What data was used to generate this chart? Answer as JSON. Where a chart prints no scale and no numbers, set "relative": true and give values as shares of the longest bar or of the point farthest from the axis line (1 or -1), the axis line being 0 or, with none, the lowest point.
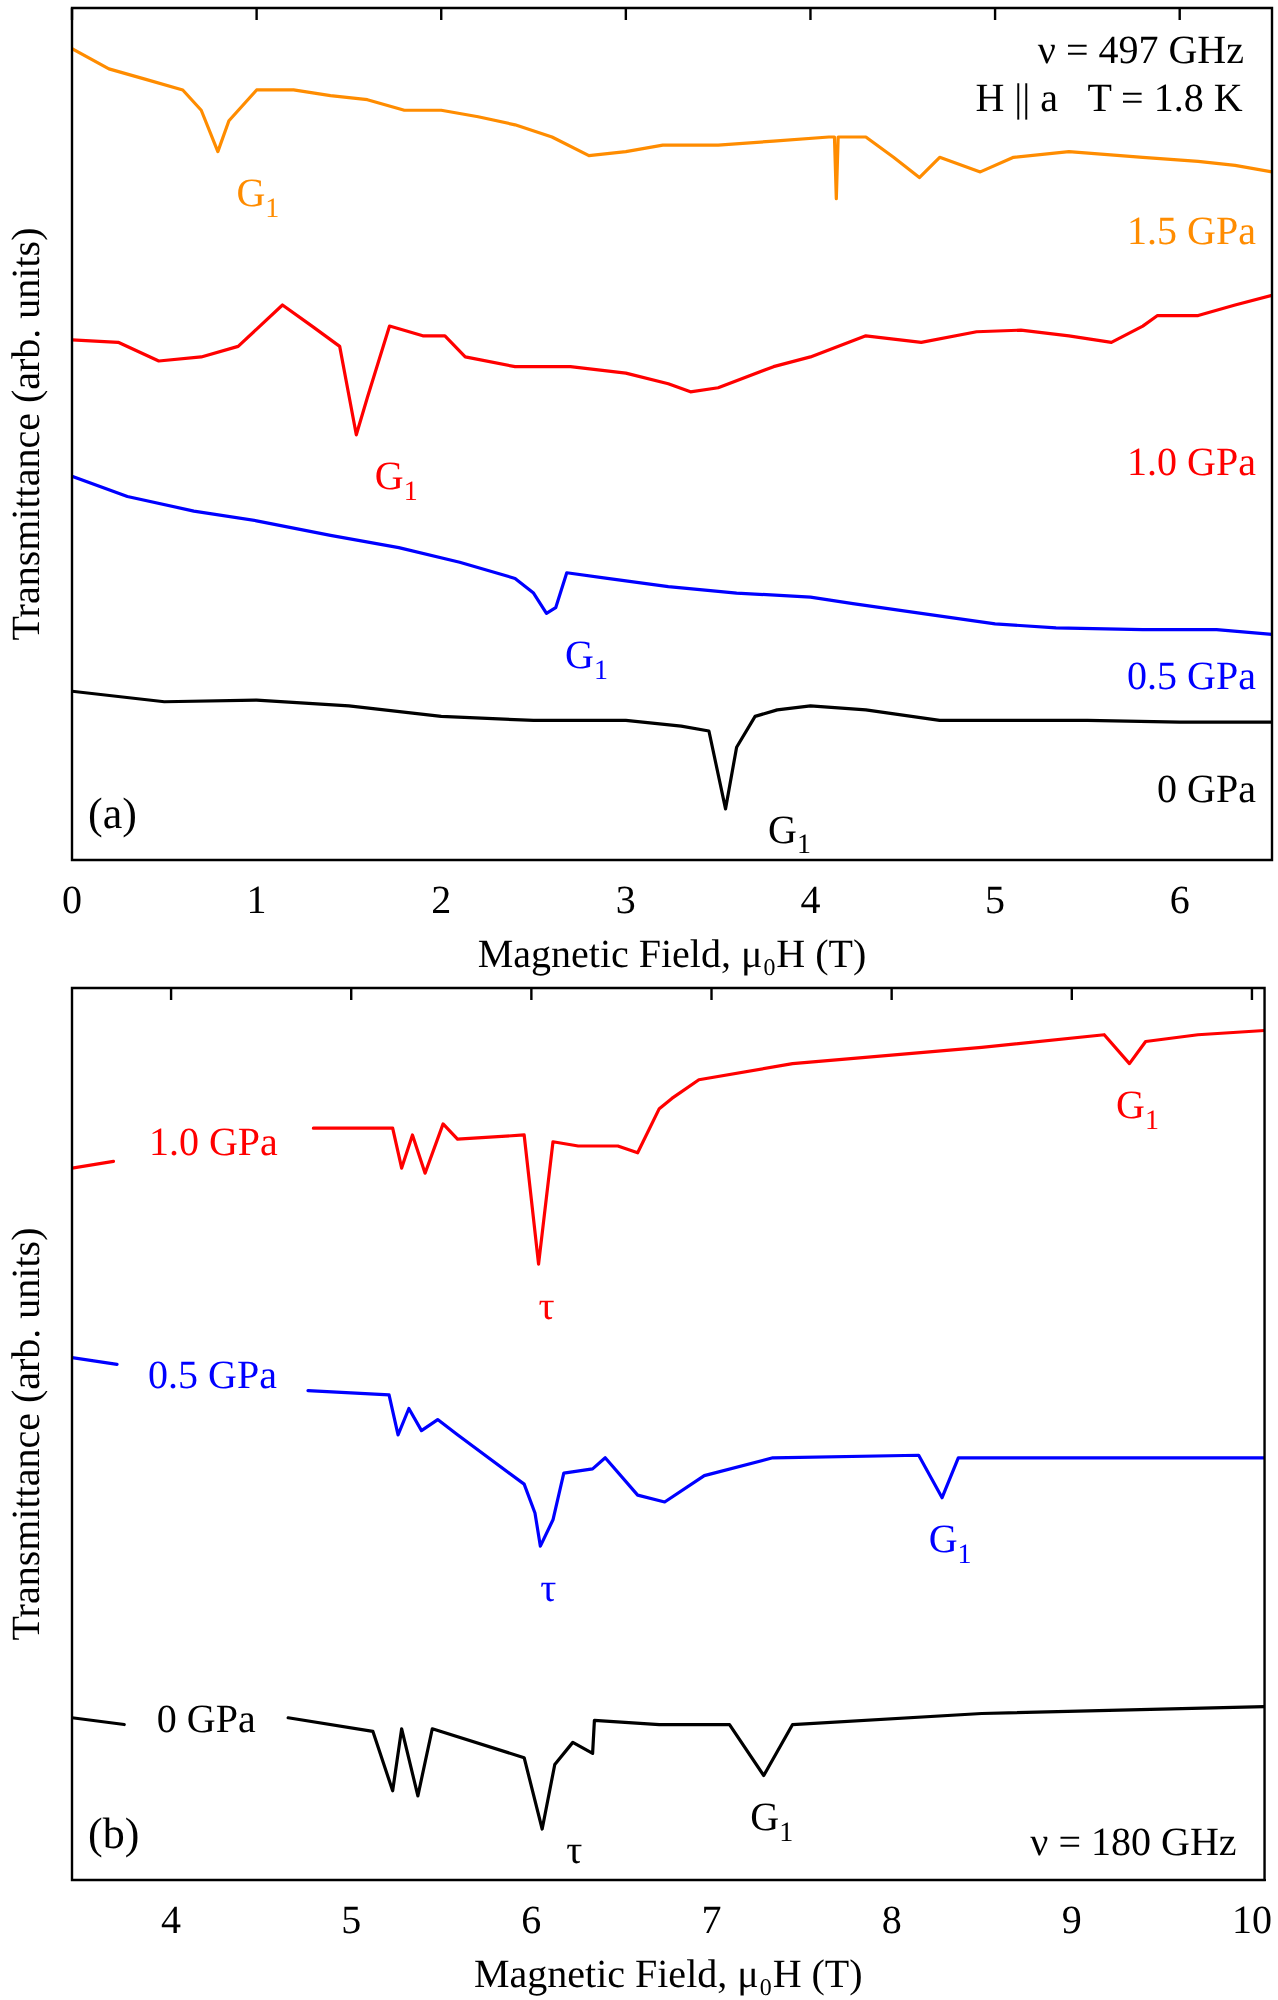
{
  "chart_data": [
    {
      "type": "line",
      "relative": true,
      "xlabel": "Magnetic Field, μ₀H (T)",
      "ylabel": "Transmittance (arb. units)",
      "xlim": [
        0,
        6.5
      ],
      "xticks": [
        0,
        1,
        2,
        3,
        4,
        5,
        6
      ],
      "tick_labels": "x",
      "legend": false,
      "grid": false,
      "marker": "none",
      "line_style": "solid",
      "series": [
        {
          "name": "1.5 GPa",
          "color": "#ff8c00",
          "x": [
            0,
            0.2,
            0.4,
            0.6,
            0.7,
            0.79,
            0.85,
            1.0,
            1.2,
            1.4,
            1.6,
            1.8,
            2.0,
            2.2,
            2.4,
            2.6,
            2.8,
            3.0,
            3.2,
            3.5,
            3.8,
            4.1,
            4.13,
            4.14,
            4.15,
            4.3,
            4.45,
            4.59,
            4.7,
            4.92,
            5.1,
            5.4,
            5.8,
            6.1,
            6.3,
            6.5
          ],
          "values": [
            1.0,
            0.975,
            0.962,
            0.949,
            0.924,
            0.873,
            0.911,
            0.949,
            0.949,
            0.942,
            0.937,
            0.924,
            0.924,
            0.916,
            0.906,
            0.891,
            0.868,
            0.873,
            0.881,
            0.881,
            0.886,
            0.891,
            0.891,
            0.815,
            0.891,
            0.891,
            0.866,
            0.841,
            0.866,
            0.848,
            0.866,
            0.873,
            0.866,
            0.861,
            0.856,
            0.848
          ]
        },
        {
          "name": "1.0 GPa",
          "color": "#ff0000",
          "x": [
            0,
            0.25,
            0.47,
            0.7,
            0.9,
            1.14,
            1.3,
            1.45,
            1.54,
            1.6,
            1.72,
            1.9,
            2.02,
            2.13,
            2.4,
            2.7,
            3.0,
            3.23,
            3.35,
            3.5,
            3.8,
            4.0,
            4.3,
            4.6,
            4.9,
            5.14,
            5.4,
            5.63,
            5.8,
            5.88,
            6.1,
            6.3,
            6.5
          ],
          "values": [
            0.641,
            0.638,
            0.615,
            0.62,
            0.633,
            0.684,
            0.658,
            0.633,
            0.524,
            0.57,
            0.658,
            0.646,
            0.646,
            0.62,
            0.608,
            0.608,
            0.6,
            0.587,
            0.577,
            0.582,
            0.608,
            0.62,
            0.646,
            0.638,
            0.651,
            0.653,
            0.646,
            0.638,
            0.658,
            0.671,
            0.671,
            0.684,
            0.696
          ]
        },
        {
          "name": "0.5 GPa",
          "color": "#0000ff",
          "x": [
            0,
            0.3,
            0.66,
            1.0,
            1.4,
            1.77,
            2.1,
            2.4,
            2.5,
            2.57,
            2.62,
            2.68,
            2.9,
            3.23,
            3.6,
            4.0,
            4.23,
            4.6,
            5.0,
            5.33,
            5.8,
            6.2,
            6.5
          ],
          "values": [
            0.473,
            0.448,
            0.43,
            0.418,
            0.4,
            0.385,
            0.367,
            0.347,
            0.329,
            0.304,
            0.311,
            0.354,
            0.347,
            0.337,
            0.329,
            0.324,
            0.316,
            0.304,
            0.291,
            0.286,
            0.284,
            0.284,
            0.278
          ]
        },
        {
          "name": "0 GPa",
          "color": "#000000",
          "x": [
            0,
            0.5,
            1.0,
            1.5,
            2.0,
            2.5,
            3.0,
            3.3,
            3.45,
            3.54,
            3.6,
            3.7,
            3.82,
            4.0,
            4.3,
            4.7,
            5.0,
            5.5,
            6.0,
            6.5
          ],
          "values": [
            0.208,
            0.195,
            0.197,
            0.19,
            0.177,
            0.172,
            0.172,
            0.165,
            0.159,
            0.063,
            0.139,
            0.177,
            0.185,
            0.19,
            0.185,
            0.172,
            0.172,
            0.172,
            0.17,
            0.17
          ]
        }
      ],
      "annotations": [
        "ν = 497 GHz",
        "H || a   T = 1.8 K",
        "(a)",
        {
          "text": "G$_{1}$",
          "x": 0.79,
          "y": 0.873
        },
        {
          "text": "G$_{1}$",
          "x": 1.54,
          "y": 0.524
        },
        {
          "text": "G$_{1}$",
          "x": 2.57,
          "y": 0.304
        },
        {
          "text": "G$_{1}$",
          "x": 3.54,
          "y": 0.063
        }
      ]
    },
    {
      "type": "line",
      "relative": true,
      "xlabel": "Magnetic Field, μ₀H (T)",
      "ylabel": "Transmittance (arb. units)",
      "xlim": [
        3.45,
        10.07
      ],
      "xticks": [
        4,
        5,
        6,
        7,
        8,
        9,
        10
      ],
      "tick_labels": "x",
      "legend": false,
      "grid": false,
      "marker": "none",
      "line_style": "solid",
      "series": [
        {
          "name": "1.0 GPa",
          "color": "#ff0000",
          "x": [
            3.45,
            3.68,
            4.2,
            4.79,
            5.23,
            5.28,
            5.34,
            5.41,
            5.51,
            5.59,
            5.96,
            6.04,
            6.12,
            6.26,
            6.48,
            6.59,
            6.71,
            6.78,
            6.93,
            7.45,
            8.5,
            9.18,
            9.32,
            9.41,
            9.7,
            10.07
          ],
          "values": [
            0.838,
            0.846,
            null,
            0.885,
            0.885,
            0.838,
            0.877,
            0.832,
            0.89,
            0.872,
            0.877,
            0.725,
            0.869,
            0.864,
            0.864,
            0.856,
            0.908,
            0.92,
            0.942,
            0.961,
            0.98,
            0.995,
            0.961,
            0.987,
            0.995,
            1.0
          ]
        },
        {
          "name": "0.5 GPa",
          "color": "#0000ff",
          "x": [
            3.45,
            3.7,
            4.2,
            4.76,
            5.21,
            5.26,
            5.32,
            5.39,
            5.48,
            5.59,
            5.96,
            6.02,
            6.05,
            6.12,
            6.18,
            6.34,
            6.41,
            6.59,
            6.74,
            6.96,
            7.34,
            8.15,
            8.28,
            8.37,
            9.0,
            10.07
          ],
          "values": [
            0.615,
            0.607,
            null,
            0.576,
            0.571,
            0.524,
            0.555,
            0.529,
            0.542,
            0.524,
            0.466,
            0.432,
            0.393,
            0.424,
            0.479,
            0.484,
            0.497,
            0.453,
            0.445,
            0.476,
            0.497,
            0.5,
            0.45,
            0.497,
            0.497,
            0.497
          ]
        },
        {
          "name": "0 GPa",
          "color": "#000000",
          "x": [
            3.45,
            3.74,
            4.2,
            4.65,
            5.12,
            5.23,
            5.28,
            5.37,
            5.45,
            5.96,
            6.06,
            6.13,
            6.23,
            6.34,
            6.35,
            6.71,
            7.1,
            7.29,
            7.45,
            8.5,
            10.07
          ],
          "values": [
            0.191,
            0.183,
            null,
            0.191,
            0.175,
            0.105,
            0.178,
            0.099,
            0.178,
            0.144,
            0.06,
            0.136,
            0.162,
            0.149,
            0.188,
            0.183,
            0.183,
            0.123,
            0.183,
            0.196,
            0.204
          ]
        }
      ],
      "annotations": [
        "ν = 180 GHz",
        "(b)",
        {
          "text": "τ",
          "x": 6.04,
          "y": 0.725
        },
        {
          "text": "τ",
          "x": 6.05,
          "y": 0.393
        },
        {
          "text": "τ",
          "x": 6.06,
          "y": 0.06
        },
        {
          "text": "G$_{1}$",
          "x": 9.32,
          "y": 0.961
        },
        {
          "text": "G$_{1}$",
          "x": 8.28,
          "y": 0.45
        },
        {
          "text": "G$_{1}$",
          "x": 7.29,
          "y": 0.123
        }
      ]
    }
  ]
}
